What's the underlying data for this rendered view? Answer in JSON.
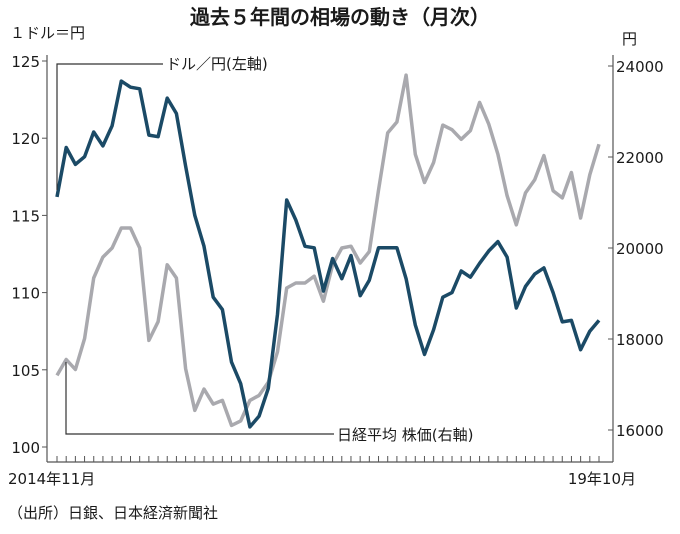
{
  "chart_data": {
    "type": "line",
    "title": "過去５年間の相場の動き（月次）",
    "left_axis": {
      "unit_label": "１ドル＝円",
      "ylim": [
        100,
        125
      ],
      "ticks": [
        "125",
        "120",
        "115",
        "110",
        "105",
        "100"
      ]
    },
    "right_axis": {
      "unit_label": "円",
      "ylim": [
        16000,
        24000
      ],
      "ticks": [
        "24000",
        "22000",
        "20000",
        "18000",
        "16000"
      ]
    },
    "x_axis": {
      "start_label": "2014年11月",
      "end_label": "19年10月",
      "tick_interval": "monthly"
    },
    "grid": false,
    "series": [
      {
        "name": "ドル／円(左軸)",
        "axis": "left",
        "color": "#1b4a66",
        "values": [
          116.2,
          119.4,
          118.3,
          118.8,
          120.4,
          119.5,
          120.8,
          123.7,
          123.3,
          123.2,
          120.2,
          120.1,
          122.6,
          121.6,
          118.2,
          115.0,
          113.0,
          109.7,
          108.9,
          105.5,
          104.1,
          101.3,
          102.0,
          103.8,
          108.6,
          116.0,
          114.7,
          113.0,
          112.9,
          110.1,
          112.2,
          110.9,
          112.4,
          109.8,
          110.8,
          112.9,
          112.9,
          112.9,
          110.9,
          107.9,
          106.0,
          107.6,
          109.7,
          110.0,
          111.4,
          111.0,
          111.9,
          112.7,
          113.3,
          112.3,
          109.0,
          110.4,
          111.2,
          111.6,
          110.0,
          108.1,
          108.2,
          106.3,
          107.5,
          108.2
        ]
      },
      {
        "name": "日経平均 株価(右軸)",
        "axis": "right",
        "color": "#a9a9ae",
        "values": [
          17200,
          17550,
          17330,
          18010,
          19340,
          19800,
          20000,
          20440,
          20440,
          20000,
          17970,
          18380,
          19630,
          19340,
          17350,
          16430,
          16900,
          16570,
          16650,
          16100,
          16200,
          16650,
          16760,
          17050,
          17720,
          19120,
          19230,
          19230,
          19380,
          18830,
          19630,
          20000,
          20040,
          19670,
          19920,
          21270,
          22530,
          22770,
          23800,
          22060,
          21440,
          21880,
          22700,
          22600,
          22390,
          22580,
          23200,
          22720,
          22060,
          21150,
          20510,
          21210,
          21500,
          22030,
          21260,
          21100,
          21660,
          20660,
          21610,
          22280
        ]
      }
    ],
    "source": "（出所）日銀、日本経済新聞社"
  }
}
